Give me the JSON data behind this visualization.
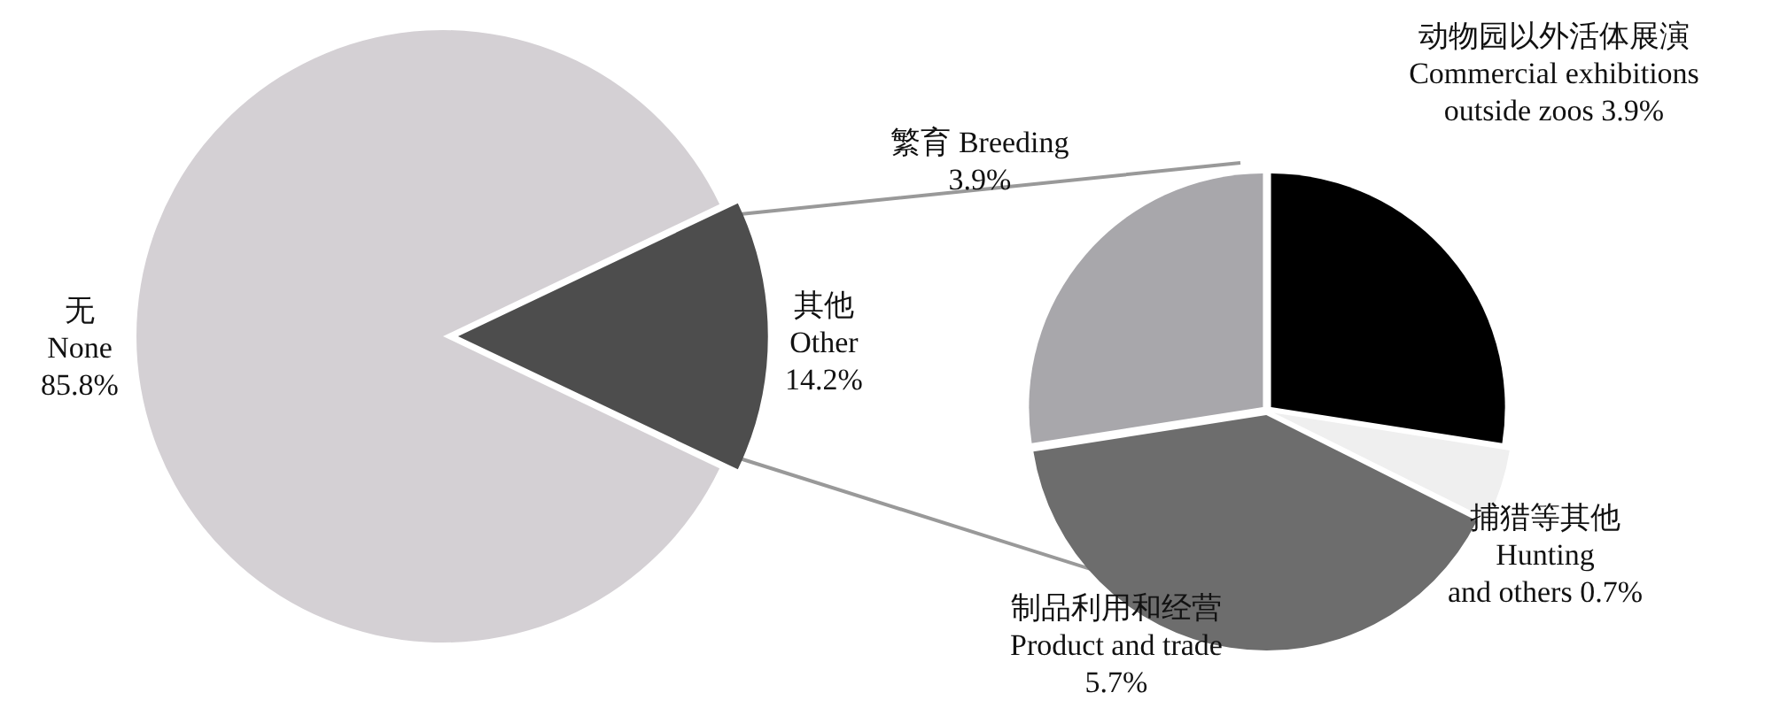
{
  "chart_data": [
    {
      "type": "pie",
      "categories": [
        "无 None",
        "其他 Other"
      ],
      "values": [
        85.8,
        14.2
      ],
      "colors": [
        "#d4d0d4",
        "#4d4d4d"
      ],
      "value_labels": [
        "85.8%",
        "14.2%"
      ],
      "legend": false
    },
    {
      "type": "pie",
      "categories": [
        "动物园以外活体展演 Commercial exhibitions outside zoos",
        "捕猎等其他 Hunting and others",
        "制品利用和经营 Product and trade",
        "繁育 Breeding"
      ],
      "values": [
        3.9,
        0.7,
        5.7,
        3.9
      ],
      "colors": [
        "#000000",
        "#efefef",
        "#6d6d6d",
        "#a8a7ab"
      ],
      "value_labels": [
        "3.9%",
        "0.7%",
        "5.7%",
        "3.9%"
      ],
      "legend": false
    }
  ]
}
